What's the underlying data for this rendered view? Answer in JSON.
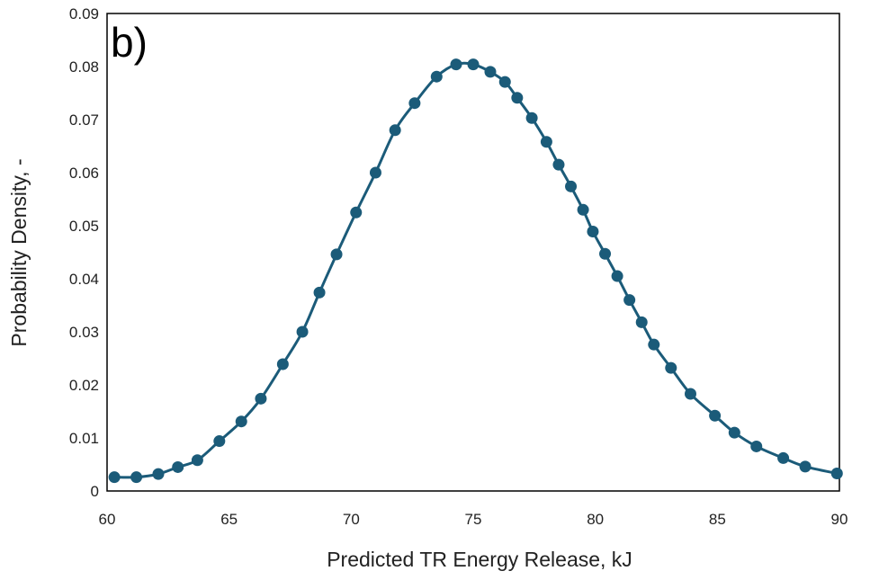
{
  "chart_data": {
    "type": "line",
    "panel_label": "b)",
    "xlabel": "Predicted TR Energy Release, kJ",
    "ylabel": "Probability Density, -",
    "xlim": [
      60,
      90
    ],
    "ylim": [
      0,
      0.09
    ],
    "x_ticks": [
      60,
      65,
      70,
      75,
      80,
      85,
      90
    ],
    "x_tick_labels": [
      "60",
      "65",
      "70",
      "75",
      "80",
      "85",
      "90"
    ],
    "y_ticks": [
      0,
      0.01,
      0.02,
      0.03,
      0.04,
      0.05,
      0.06,
      0.07,
      0.08,
      0.09
    ],
    "y_tick_labels": [
      "0",
      "0.01",
      "0.02",
      "0.03",
      "0.04",
      "0.05",
      "0.06",
      "0.07",
      "0.08",
      "0.09"
    ],
    "grid": false,
    "legend": "none",
    "colors": {
      "series": "#1b5b79",
      "axes": "#000000"
    },
    "series": [
      {
        "x": [
          60.3,
          61.2,
          62.1,
          62.9,
          63.7,
          64.6,
          65.5,
          66.3,
          67.2,
          68.0,
          68.7,
          69.4,
          70.2,
          71.0,
          71.8,
          72.6,
          73.5,
          74.3,
          75.0,
          75.7,
          76.3,
          76.8,
          77.4,
          78.0,
          78.5,
          79.0,
          79.5,
          79.9,
          80.4,
          80.9,
          81.4,
          81.9,
          82.4,
          83.1,
          83.9,
          84.9,
          85.7,
          86.6,
          87.7,
          88.6,
          89.9
        ],
        "y": [
          0.0026,
          0.0026,
          0.0032,
          0.0045,
          0.0058,
          0.0094,
          0.0131,
          0.0174,
          0.0239,
          0.03,
          0.0374,
          0.0446,
          0.0525,
          0.06,
          0.068,
          0.0731,
          0.0781,
          0.0804,
          0.0804,
          0.079,
          0.0771,
          0.0741,
          0.0703,
          0.0658,
          0.0615,
          0.0574,
          0.053,
          0.0489,
          0.0447,
          0.0405,
          0.036,
          0.0318,
          0.0276,
          0.0232,
          0.0183,
          0.0142,
          0.011,
          0.0084,
          0.0062,
          0.0046,
          0.0033
        ]
      }
    ]
  }
}
